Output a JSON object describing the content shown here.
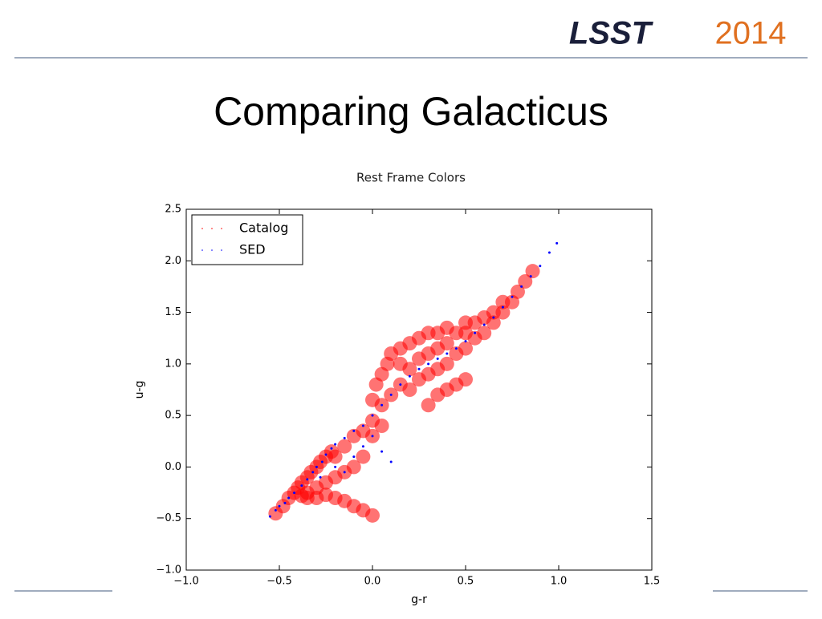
{
  "slide_title": "Comparing Galacticus",
  "logo": {
    "lsst": "LSST",
    "year": "2014"
  },
  "chart_data": {
    "type": "scatter",
    "title": "Rest Frame Colors",
    "x_label": "g-r",
    "y_label": "u-g",
    "xlim": [
      -1.0,
      1.5
    ],
    "ylim": [
      -1.0,
      2.5
    ],
    "xticks": [
      {
        "value": -1.0,
        "label": "−1.0"
      },
      {
        "value": -0.5,
        "label": "−0.5"
      },
      {
        "value": 0.0,
        "label": "0.0"
      },
      0.5,
      {
        "value": 1.0,
        "label": "1.0"
      },
      1.5
    ],
    "yticks": [
      {
        "value": -1.0,
        "label": "−1.0"
      },
      {
        "value": -0.5,
        "label": "−0.5"
      },
      {
        "value": 0.0,
        "label": "0.0"
      },
      0.5,
      {
        "value": 1.0,
        "label": "1.0"
      },
      1.5,
      {
        "value": 2.0,
        "label": "2.0"
      },
      2.5
    ],
    "legend": "upper left",
    "series": [
      {
        "name": "Catalog",
        "color": "#ff0000",
        "x": [
          -0.52,
          -0.48,
          -0.45,
          -0.42,
          -0.4,
          -0.38,
          -0.35,
          -0.33,
          -0.3,
          -0.28,
          -0.25,
          -0.22,
          -0.38,
          -0.35,
          -0.3,
          -0.25,
          -0.2,
          -0.15,
          -0.1,
          -0.05,
          -0.2,
          -0.15,
          -0.1,
          -0.05,
          0.0,
          0.0,
          0.05,
          0.05,
          0.0,
          0.02,
          0.05,
          0.08,
          0.1,
          0.1,
          0.15,
          0.15,
          0.15,
          0.2,
          0.2,
          0.2,
          0.25,
          0.25,
          0.25,
          0.3,
          0.3,
          0.3,
          0.35,
          0.35,
          0.35,
          0.4,
          0.4,
          0.4,
          0.45,
          0.45,
          0.5,
          0.5,
          0.5,
          0.55,
          0.55,
          0.6,
          0.6,
          0.65,
          0.65,
          0.7,
          0.7,
          0.75,
          0.78,
          0.82,
          0.86,
          0.45,
          0.4,
          0.35,
          0.3,
          0.5,
          -0.25,
          -0.2,
          -0.15,
          -0.1,
          -0.05,
          0.0,
          -0.35,
          -0.3
        ],
        "y": [
          -0.45,
          -0.38,
          -0.3,
          -0.25,
          -0.2,
          -0.15,
          -0.1,
          -0.05,
          0.0,
          0.05,
          0.1,
          0.15,
          -0.28,
          -0.25,
          -0.2,
          -0.15,
          -0.1,
          -0.05,
          0.0,
          0.1,
          0.1,
          0.2,
          0.3,
          0.35,
          0.45,
          0.3,
          0.4,
          0.6,
          0.65,
          0.8,
          0.9,
          1.0,
          1.1,
          0.7,
          0.8,
          1.0,
          1.15,
          0.75,
          0.95,
          1.2,
          0.85,
          1.05,
          1.25,
          0.9,
          1.1,
          1.3,
          0.95,
          1.15,
          1.3,
          1.0,
          1.2,
          1.35,
          1.1,
          1.3,
          1.15,
          1.3,
          1.4,
          1.25,
          1.4,
          1.3,
          1.45,
          1.4,
          1.5,
          1.5,
          1.6,
          1.6,
          1.7,
          1.8,
          1.9,
          0.8,
          0.75,
          0.7,
          0.6,
          0.85,
          -0.27,
          -0.3,
          -0.33,
          -0.38,
          -0.42,
          -0.47,
          -0.3,
          -0.3
        ]
      },
      {
        "name": "SED",
        "color": "#0000ff",
        "x": [
          -0.55,
          -0.52,
          -0.5,
          -0.47,
          -0.45,
          -0.42,
          -0.38,
          -0.35,
          -0.32,
          -0.3,
          -0.27,
          -0.25,
          -0.22,
          -0.2,
          -0.15,
          -0.1,
          -0.05,
          0.0,
          0.05,
          0.1,
          0.15,
          0.2,
          0.25,
          0.3,
          0.35,
          0.4,
          0.45,
          0.5,
          0.55,
          0.6,
          0.65,
          0.7,
          0.75,
          0.8,
          0.85,
          0.9,
          0.95,
          0.99,
          -0.1,
          -0.05,
          0.0,
          0.05,
          0.1,
          -0.15,
          -0.2,
          -0.28
        ],
        "y": [
          -0.48,
          -0.42,
          -0.38,
          -0.35,
          -0.3,
          -0.25,
          -0.18,
          -0.12,
          -0.05,
          0.0,
          0.05,
          0.12,
          0.18,
          0.22,
          0.28,
          0.35,
          0.4,
          0.5,
          0.6,
          0.7,
          0.8,
          0.88,
          0.95,
          1.0,
          1.05,
          1.1,
          1.15,
          1.22,
          1.3,
          1.38,
          1.45,
          1.55,
          1.65,
          1.75,
          1.85,
          1.95,
          2.08,
          2.17,
          0.1,
          0.2,
          0.3,
          0.15,
          0.05,
          -0.05,
          0.0,
          -0.1
        ]
      }
    ]
  }
}
